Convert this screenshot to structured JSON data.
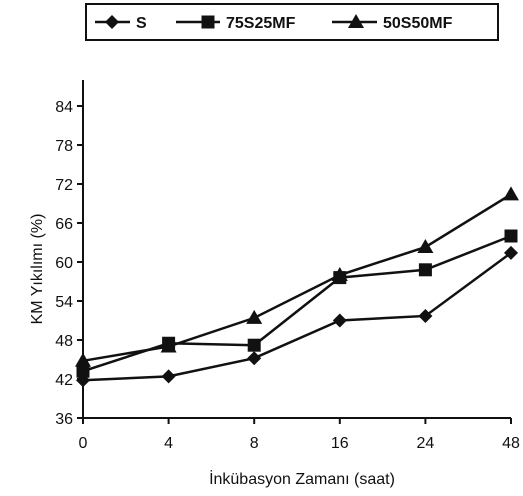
{
  "chart_data": {
    "type": "line",
    "categories": [
      "0",
      "4",
      "8",
      "16",
      "24",
      "48"
    ],
    "xlabel": "İnkübasyon Zamanı (saat)",
    "ylabel": "KM Yıkılımı (%)",
    "ylim": [
      36,
      88
    ],
    "yticks": [
      36,
      42,
      48,
      54,
      60,
      66,
      72,
      78,
      84
    ],
    "grid": false,
    "legend_position": "top",
    "series": [
      {
        "name": "S",
        "marker": "diamond",
        "values": [
          41.8,
          42.4,
          45.2,
          51.0,
          51.7,
          61.4
        ]
      },
      {
        "name": "75S25MF",
        "marker": "square",
        "values": [
          43.2,
          47.5,
          47.2,
          57.6,
          58.8,
          64.0
        ]
      },
      {
        "name": "50S50MF",
        "marker": "triangle",
        "values": [
          44.8,
          47.0,
          51.4,
          58.0,
          62.3,
          70.4
        ]
      }
    ],
    "line_color": "#111111"
  }
}
